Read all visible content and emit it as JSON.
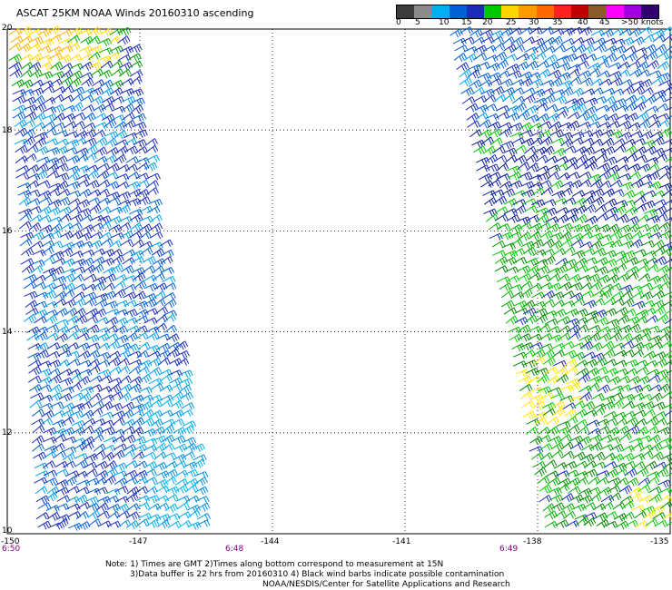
{
  "title": "ASCAT 25KM NOAA Winds 20160310 ascending",
  "legend": {
    "colors": [
      "#3c3c3c",
      "#8c8c8c",
      "#00b0f0",
      "#0060d8",
      "#1a2cb8",
      "#00c800",
      "#ffd700",
      "#ff9b00",
      "#ff6a00",
      "#ff2020",
      "#c00000",
      "#8b5a2b",
      "#ff00ff",
      "#a000e0",
      "#300070"
    ],
    "ticks": [
      "0",
      "5",
      "10",
      "15",
      "20",
      "25",
      "30",
      "35",
      "40",
      "45",
      ">50 knots"
    ]
  },
  "axes": {
    "lat_labels": [
      "20",
      "18",
      "16",
      "14",
      "12",
      "10"
    ],
    "lon_labels": [
      "-150",
      "-147",
      "-144",
      "-141",
      "-138",
      "-135"
    ]
  },
  "times": [
    "6:50",
    "6:48",
    "6:49"
  ],
  "notes": {
    "line1": "Note: 1) Times are GMT 2)Times along bottom correspond to measurement at 15N",
    "line2": "3)Data buffer is 22 hrs from 20160310 4) Black wind barbs indicate possible contamination",
    "line3": "NOAA/NESDIS/Center for Satellite Applications and Research"
  },
  "map_extent": {
    "lon": [
      -150,
      -135
    ],
    "lat": [
      10,
      20
    ]
  },
  "swaths": [
    {
      "name": "west",
      "lon_west_top": -150,
      "lon_east_top": -147.3,
      "lon_west_bottom": -149.3,
      "lon_east_bottom": -145.5,
      "dominant_speed_knots": 15
    },
    {
      "name": "east",
      "lon_west_top": -140.0,
      "lon_east_top": -135,
      "lon_west_bottom": -137.8,
      "lon_east_bottom": -135,
      "dominant_speed_knots": 20
    }
  ]
}
